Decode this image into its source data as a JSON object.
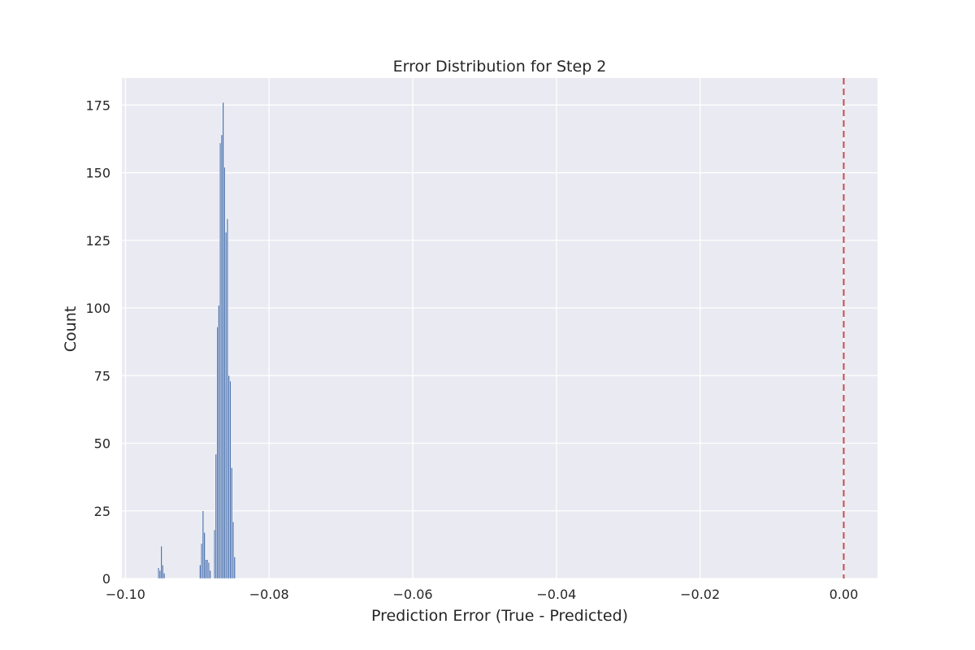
{
  "chart_data": {
    "type": "bar",
    "title": "Error Distribution for Step 2",
    "xlabel": "Prediction Error (True - Predicted)",
    "ylabel": "Count",
    "xlim": [
      -0.1005,
      0.0047
    ],
    "ylim": [
      0,
      185
    ],
    "x_ticks": [
      -0.1,
      -0.08,
      -0.06,
      -0.04,
      -0.02,
      0.0
    ],
    "x_tick_labels": [
      "−0.10",
      "−0.08",
      "−0.06",
      "−0.04",
      "−0.02",
      "0.00"
    ],
    "y_ticks": [
      0,
      25,
      50,
      75,
      100,
      125,
      150,
      175
    ],
    "y_tick_labels": [
      "0",
      "25",
      "50",
      "75",
      "100",
      "125",
      "150",
      "175"
    ],
    "grid": true,
    "bar_color": "#4c72b0",
    "background_color": "#eaeaf2",
    "reference_line": {
      "x": 0.0,
      "color": "#c44e52",
      "style": "dashed"
    },
    "bins": [
      {
        "x": -0.0955,
        "count": 4
      },
      {
        "x": -0.0953,
        "count": 3
      },
      {
        "x": -0.0951,
        "count": 12
      },
      {
        "x": -0.0949,
        "count": 5
      },
      {
        "x": -0.0947,
        "count": 2
      },
      {
        "x": -0.0897,
        "count": 5
      },
      {
        "x": -0.0895,
        "count": 13
      },
      {
        "x": -0.0893,
        "count": 25
      },
      {
        "x": -0.0891,
        "count": 17
      },
      {
        "x": -0.0889,
        "count": 7
      },
      {
        "x": -0.0887,
        "count": 7
      },
      {
        "x": -0.0885,
        "count": 6
      },
      {
        "x": -0.0883,
        "count": 3
      },
      {
        "x": -0.0877,
        "count": 18
      },
      {
        "x": -0.0875,
        "count": 46
      },
      {
        "x": -0.0873,
        "count": 93
      },
      {
        "x": -0.0871,
        "count": 101
      },
      {
        "x": -0.0869,
        "count": 161
      },
      {
        "x": -0.0867,
        "count": 164
      },
      {
        "x": -0.0865,
        "count": 176
      },
      {
        "x": -0.0863,
        "count": 152
      },
      {
        "x": -0.0861,
        "count": 128
      },
      {
        "x": -0.0859,
        "count": 133
      },
      {
        "x": -0.0857,
        "count": 75
      },
      {
        "x": -0.0855,
        "count": 73
      },
      {
        "x": -0.0853,
        "count": 41
      },
      {
        "x": -0.0851,
        "count": 21
      },
      {
        "x": -0.0849,
        "count": 8
      }
    ]
  }
}
